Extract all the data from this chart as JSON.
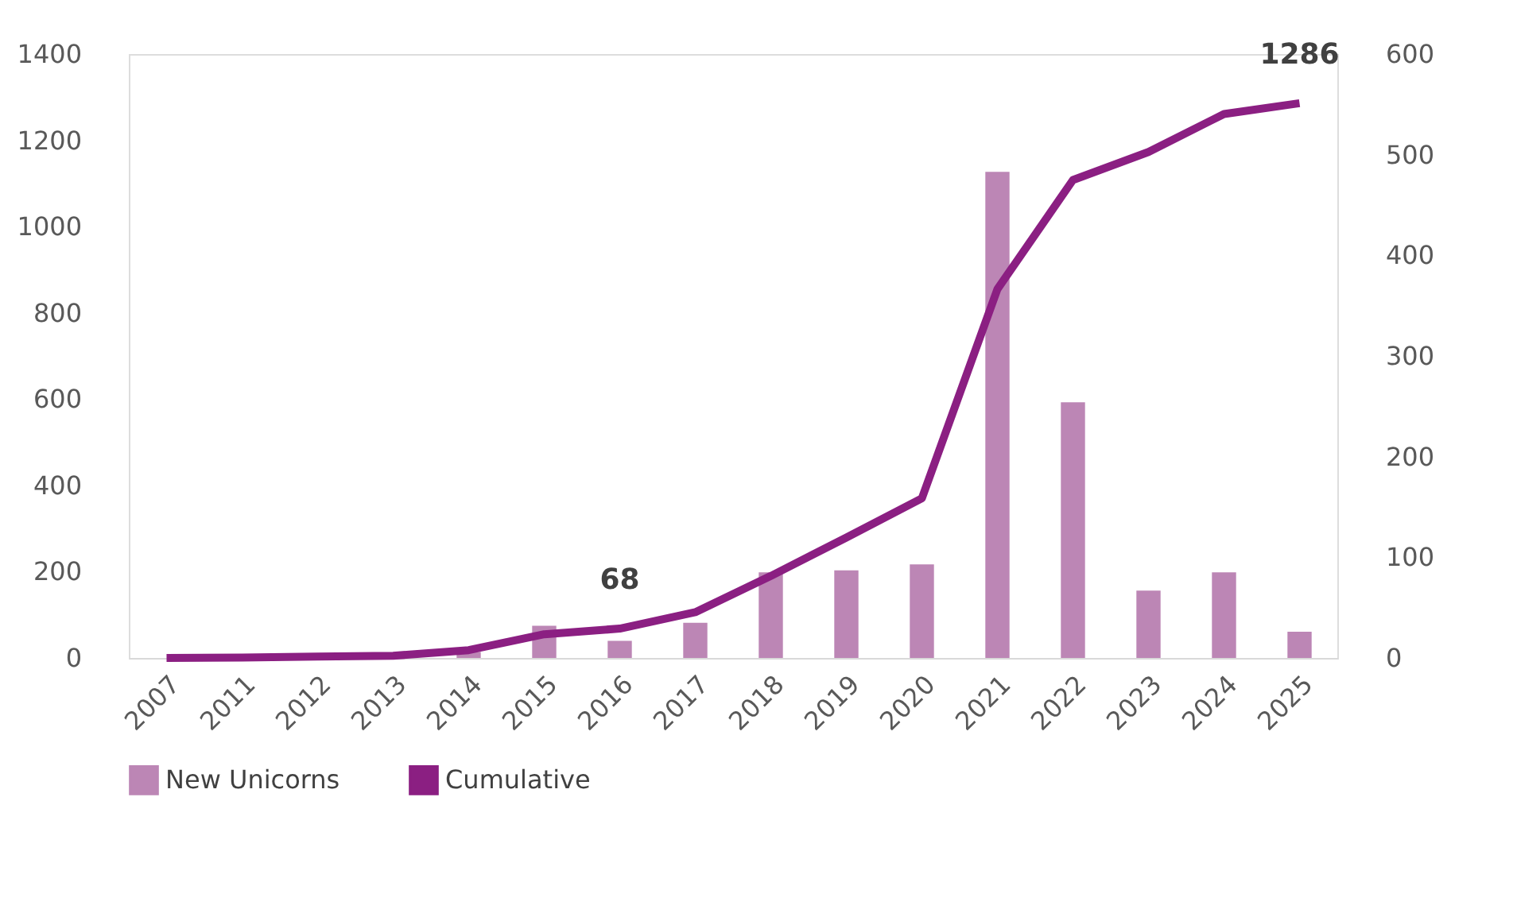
{
  "chart_data": {
    "type": "bar",
    "categories": [
      "2007",
      "2011",
      "2012",
      "2013",
      "2014",
      "2015",
      "2016",
      "2017",
      "2018",
      "2019",
      "2020",
      "2021",
      "2022",
      "2023",
      "2024",
      "2025"
    ],
    "series": [
      {
        "name": "New Unicorns",
        "axis": "y2",
        "color": "#bc86b5",
        "values": [
          0,
          1,
          2,
          2,
          6,
          32,
          17,
          35,
          85,
          87,
          93,
          483,
          254,
          67,
          85,
          26
        ]
      },
      {
        "name": "Cumulative",
        "type": "line",
        "color": "#8b1f82",
        "values": [
          0,
          1,
          3,
          5,
          18,
          55,
          68,
          106,
          190,
          279,
          370,
          855,
          1108,
          1173,
          1261,
          1286
        ],
        "value_labels": [
          null,
          null,
          null,
          null,
          null,
          null,
          "68",
          null,
          null,
          null,
          null,
          null,
          null,
          null,
          null,
          "1286"
        ]
      }
    ],
    "ylim": [
      0,
      1400
    ],
    "yticks": [
      0,
      200,
      400,
      600,
      800,
      1000,
      1200,
      1400
    ],
    "y2lim": [
      0,
      600
    ],
    "y2ticks": [
      0,
      100,
      200,
      300,
      400,
      500,
      600
    ],
    "grid": false,
    "legend": "bottom",
    "marker": "none",
    "line_style": "solid"
  }
}
